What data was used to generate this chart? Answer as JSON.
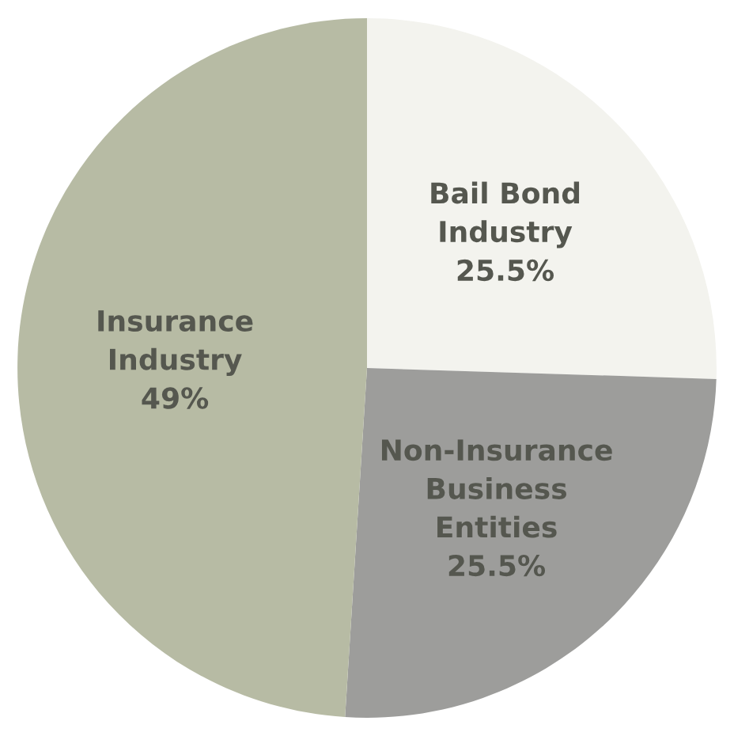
{
  "chart_data": {
    "type": "pie",
    "categories": [
      "Bail Bond\nIndustry",
      "Non-Insurance\nBusiness\nEntities",
      "Insurance\nIndustry"
    ],
    "values": [
      25.5,
      25.5,
      49
    ],
    "value_labels": [
      "25.5%",
      "25.5%",
      "49%"
    ],
    "colors": [
      "#f3f3ee",
      "#9d9d9b",
      "#b7bba4"
    ]
  }
}
